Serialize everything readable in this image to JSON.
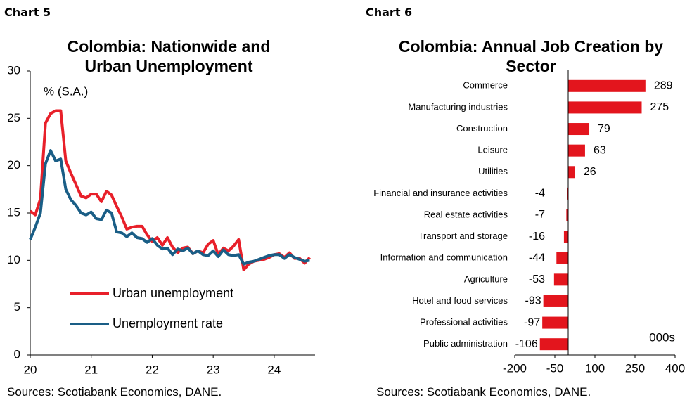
{
  "chart_data": [
    {
      "type": "line",
      "label": "Chart 5",
      "title": "Colombia: Nationwide and Urban Unemployment",
      "unit": "% (S.A.)",
      "source": "Sources: Scotiabank Economics, DANE.",
      "x": [
        20,
        20.083,
        20.167,
        20.25,
        20.333,
        20.417,
        20.5,
        20.583,
        20.667,
        20.75,
        20.833,
        20.917,
        21,
        21.083,
        21.167,
        21.25,
        21.333,
        21.417,
        21.5,
        21.583,
        21.667,
        21.75,
        21.833,
        21.917,
        22,
        22.083,
        22.167,
        22.25,
        22.333,
        22.417,
        22.5,
        22.583,
        22.667,
        22.75,
        22.833,
        22.917,
        23,
        23.083,
        23.167,
        23.25,
        23.333,
        23.417,
        23.5,
        23.583,
        23.667,
        23.75,
        23.833,
        23.917,
        24,
        24.083,
        24.167,
        24.25,
        24.333,
        24.417,
        24.5,
        24.583
      ],
      "series": [
        {
          "name": "Urban unemployment",
          "color": "#e8202a",
          "values": [
            15.2,
            14.8,
            16.5,
            24.5,
            25.5,
            25.8,
            25.8,
            20.5,
            19.2,
            18.0,
            16.8,
            16.6,
            17.0,
            17.0,
            16.2,
            17.3,
            16.9,
            15.7,
            14.6,
            13.3,
            13.5,
            13.6,
            13.6,
            12.7,
            12.0,
            12.4,
            11.6,
            12.4,
            11.4,
            10.8,
            11.3,
            11.4,
            10.7,
            11.0,
            10.8,
            11.7,
            12.1,
            10.6,
            11.3,
            11.0,
            11.5,
            12.2,
            9.0,
            9.6,
            9.9,
            10.0,
            10.1,
            10.3,
            10.6,
            10.7,
            10.3,
            10.8,
            10.2,
            10.2,
            9.7,
            10.3
          ]
        },
        {
          "name": "Unemployment rate",
          "color": "#1a5e86",
          "values": [
            12.2,
            13.5,
            15.0,
            20.2,
            21.6,
            20.5,
            20.7,
            17.5,
            16.4,
            15.8,
            15.0,
            14.8,
            15.1,
            14.4,
            14.3,
            15.3,
            15.0,
            13.0,
            12.9,
            12.5,
            12.9,
            12.4,
            12.3,
            11.9,
            12.3,
            11.6,
            11.2,
            11.3,
            10.6,
            11.2,
            11.0,
            11.3,
            10.7,
            11.0,
            10.6,
            10.5,
            11.0,
            10.4,
            11.1,
            10.6,
            10.5,
            10.6,
            9.6,
            9.8,
            9.9,
            10.1,
            10.3,
            10.5,
            10.6,
            10.6,
            10.2,
            10.6,
            10.3,
            10.1,
            9.9,
            10.0
          ]
        }
      ],
      "xlim": [
        20,
        24.67
      ],
      "xticks": [
        20,
        21,
        22,
        23,
        24
      ],
      "ylim": [
        0,
        30
      ],
      "yticks": [
        0,
        5,
        10,
        15,
        20,
        25,
        30
      ]
    },
    {
      "type": "hbar",
      "label": "Chart 6",
      "title": "Colombia: Annual Job Creation by Sector",
      "unit": "000s",
      "source": "Sources: Scotiabank Economics, DANE.",
      "color": "#e3151d",
      "categories": [
        "Commerce",
        "Manufacturing industries",
        "Construction",
        "Leisure",
        "Utilities",
        "Financial and insurance activities",
        "Real estate activities",
        "Transport and storage",
        "Information and communication",
        "Agriculture",
        "Hotel and food services",
        "Professional activities",
        "Public administration"
      ],
      "values": [
        289,
        275,
        79,
        63,
        26,
        -4,
        -7,
        -16,
        -44,
        -53,
        -93,
        -97,
        -106
      ],
      "xlim": [
        -200,
        400
      ],
      "xticks": [
        -200,
        -50,
        100,
        250,
        400
      ]
    }
  ]
}
